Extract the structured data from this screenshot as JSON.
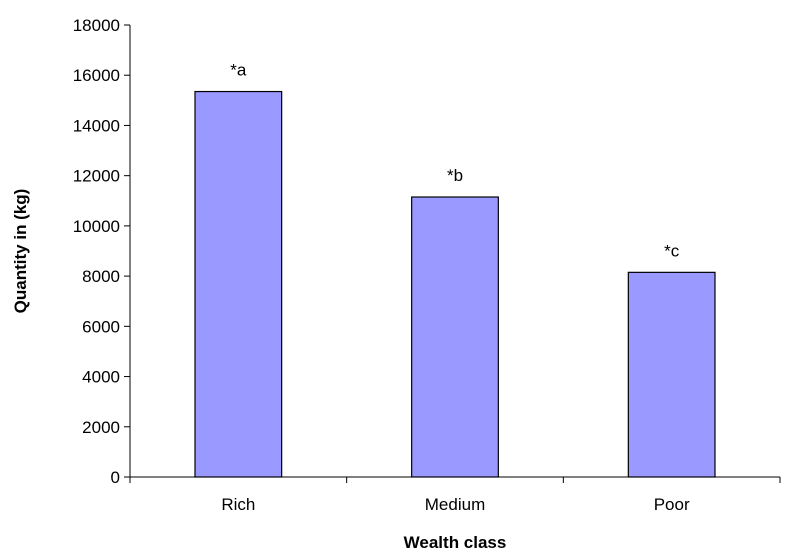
{
  "chart_data": {
    "type": "bar",
    "title": "",
    "xlabel": "Wealth class",
    "ylabel": "Quantity in (kg)",
    "categories": [
      "Rich",
      "Medium",
      "Poor"
    ],
    "values": [
      15350,
      11150,
      8150
    ],
    "data_labels": [
      "*a",
      "*b",
      "*c"
    ],
    "ylim": [
      0,
      18000
    ],
    "yticks": [
      0,
      2000,
      4000,
      6000,
      8000,
      10000,
      12000,
      14000,
      16000,
      18000
    ],
    "grid": false,
    "legend": "none",
    "bar_color": "#9999ff",
    "bar_edge_color": "#000000"
  }
}
